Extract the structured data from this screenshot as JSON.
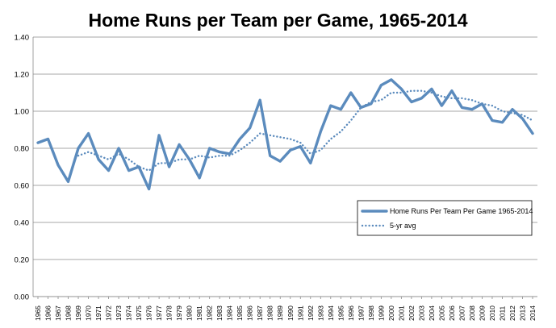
{
  "chart_data": {
    "type": "line",
    "title": "Home Runs per Team per Game, 1965-2014",
    "xlabel": "",
    "ylabel": "",
    "ylim": [
      0,
      1.4
    ],
    "yticks": [
      "0.00",
      "0.20",
      "0.40",
      "0.60",
      "0.80",
      "1.00",
      "1.20",
      "1.40"
    ],
    "grid": true,
    "legend_position": "bottom-right",
    "categories": [
      "1965",
      "1966",
      "1967",
      "1968",
      "1969",
      "1970",
      "1971",
      "1972",
      "1973",
      "1974",
      "1975",
      "1976",
      "1977",
      "1978",
      "1979",
      "1980",
      "1981",
      "1982",
      "1983",
      "1984",
      "1985",
      "1986",
      "1987",
      "1988",
      "1989",
      "1990",
      "1991",
      "1992",
      "1993",
      "1994",
      "1995",
      "1996",
      "1997",
      "1998",
      "1999",
      "2000",
      "2001",
      "2002",
      "2003",
      "2004",
      "2005",
      "2006",
      "2007",
      "2008",
      "2009",
      "2010",
      "2011",
      "2012",
      "2013",
      "2014"
    ],
    "series": [
      {
        "name": "Home Runs Per Team Per Game 1965-2014",
        "style": "solid",
        "color": "#5b8bbd",
        "values": [
          0.83,
          0.85,
          0.71,
          0.62,
          0.8,
          0.88,
          0.74,
          0.68,
          0.8,
          0.68,
          0.7,
          0.58,
          0.87,
          0.7,
          0.82,
          0.74,
          0.64,
          0.8,
          0.78,
          0.77,
          0.85,
          0.91,
          1.06,
          0.76,
          0.73,
          0.79,
          0.81,
          0.72,
          0.89,
          1.03,
          1.01,
          1.1,
          1.02,
          1.04,
          1.14,
          1.17,
          1.12,
          1.05,
          1.07,
          1.12,
          1.03,
          1.11,
          1.02,
          1.01,
          1.04,
          0.95,
          0.94,
          1.01,
          0.96,
          0.88
        ]
      },
      {
        "name": "5-yr avg",
        "style": "dotted",
        "color": "#5b8bbd",
        "values": [
          null,
          null,
          null,
          null,
          0.76,
          0.78,
          0.76,
          0.74,
          0.77,
          0.74,
          0.7,
          0.68,
          0.72,
          0.72,
          0.74,
          0.74,
          0.76,
          0.75,
          0.76,
          0.76,
          0.79,
          0.83,
          0.88,
          0.87,
          0.86,
          0.85,
          0.83,
          0.77,
          0.79,
          0.85,
          0.89,
          0.95,
          1.02,
          1.05,
          1.06,
          1.1,
          1.1,
          1.11,
          1.11,
          1.1,
          1.08,
          1.07,
          1.07,
          1.06,
          1.04,
          1.03,
          1.0,
          0.99,
          0.98,
          0.95
        ]
      }
    ]
  }
}
